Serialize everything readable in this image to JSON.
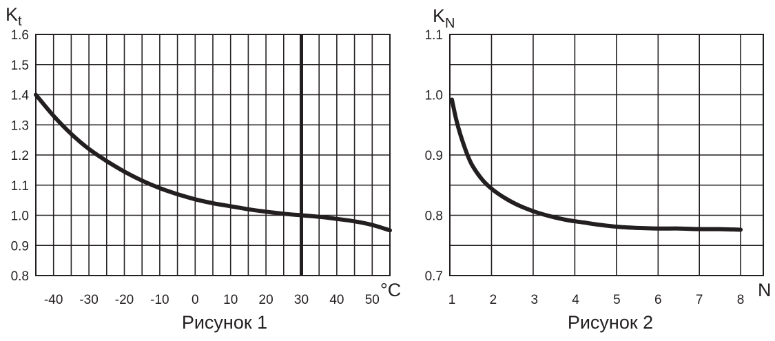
{
  "chart_data": [
    {
      "type": "line",
      "caption": "Рисунок 1",
      "ylabel": "K",
      "ylabel_sub": "t",
      "xunit": "°C",
      "xlim": [
        -45,
        55
      ],
      "ylim": [
        0.8,
        1.6
      ],
      "x_ticks": [
        -40,
        -30,
        -20,
        -10,
        0,
        10,
        20,
        30,
        40,
        50
      ],
      "x_tick_labels": [
        "-40",
        "-30",
        "-20",
        "-10",
        "0",
        "10",
        "20",
        "30",
        "40",
        "50"
      ],
      "y_ticks": [
        0.8,
        0.9,
        1.0,
        1.1,
        1.2,
        1.3,
        1.4,
        1.5,
        1.6
      ],
      "y_tick_labels": [
        "0.8",
        "0.9",
        "1.0",
        "1.1",
        "1.2",
        "1.3",
        "1.4",
        "1.5",
        "1.6"
      ],
      "x_grid_step": 5,
      "y_grid_step": 0.1,
      "grid": true,
      "reference_line_x": 30,
      "series": [
        {
          "x": [
            -45,
            -40,
            -35,
            -30,
            -25,
            -20,
            -15,
            -10,
            -5,
            0,
            5,
            10,
            15,
            20,
            25,
            30,
            35,
            40,
            45,
            50,
            55
          ],
          "values": [
            1.4,
            1.33,
            1.27,
            1.22,
            1.18,
            1.145,
            1.115,
            1.09,
            1.07,
            1.053,
            1.04,
            1.03,
            1.02,
            1.012,
            1.005,
            1.0,
            0.995,
            0.988,
            0.98,
            0.968,
            0.95
          ]
        }
      ]
    },
    {
      "type": "line",
      "caption": "Рисунок 2",
      "ylabel": "K",
      "ylabel_sub": "N",
      "xunit": "N",
      "xlim": [
        0.95,
        8.55
      ],
      "ylim": [
        0.7,
        1.1
      ],
      "x_ticks": [
        1,
        2,
        3,
        4,
        5,
        6,
        7,
        8
      ],
      "x_tick_labels": [
        "1",
        "2",
        "3",
        "4",
        "5",
        "6",
        "7",
        "8"
      ],
      "y_ticks": [
        0.7,
        0.8,
        0.9,
        1.0,
        1.1
      ],
      "y_tick_labels": [
        "0.7",
        "0.8",
        "0.9",
        "1.0",
        "1.1"
      ],
      "x_grid": [
        0.95,
        1.96,
        2.97,
        3.98,
        4.99,
        6.0,
        7.0,
        8.0,
        8.55
      ],
      "y_grid_step": 0.05,
      "grid": true,
      "series": [
        {
          "x": [
            1.0,
            1.1,
            1.2,
            1.35,
            1.5,
            1.75,
            2.0,
            2.3,
            2.6,
            3.0,
            3.4,
            3.8,
            4.2,
            4.6,
            5.0,
            5.5,
            6.0,
            6.5,
            7.0,
            7.5,
            8.0
          ],
          "values": [
            0.992,
            0.96,
            0.935,
            0.905,
            0.882,
            0.858,
            0.842,
            0.828,
            0.817,
            0.806,
            0.798,
            0.792,
            0.788,
            0.784,
            0.781,
            0.779,
            0.778,
            0.778,
            0.777,
            0.777,
            0.776
          ]
        }
      ]
    }
  ]
}
